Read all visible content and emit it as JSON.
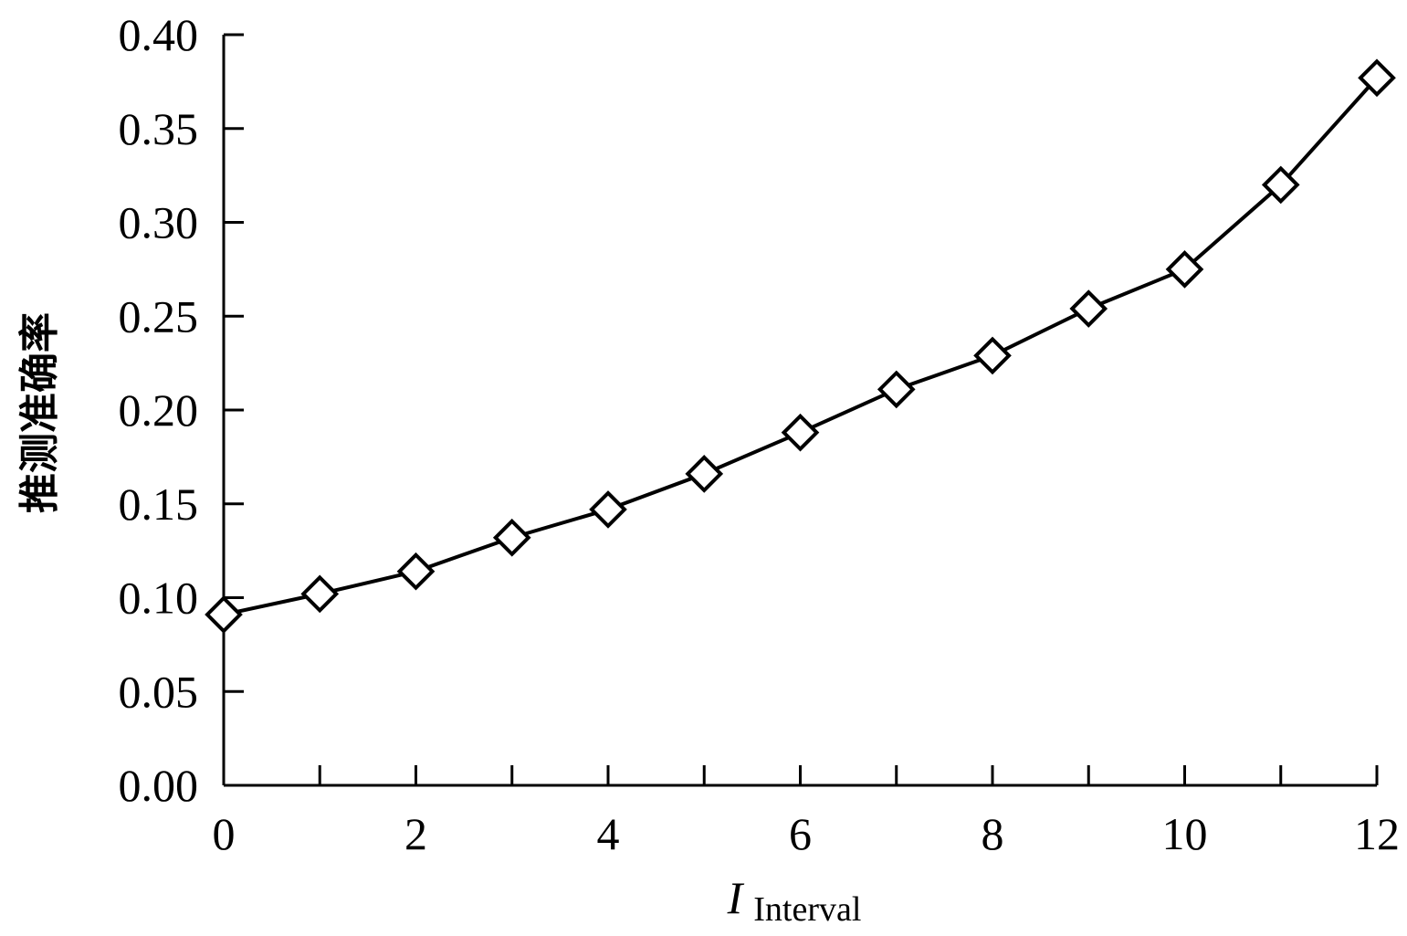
{
  "chart_data": {
    "type": "line",
    "title": "",
    "xlabel": {
      "main": "I",
      "subscript": "Interval"
    },
    "ylabel": "推测准确率",
    "xlim": [
      0,
      12
    ],
    "ylim": [
      0.0,
      0.4
    ],
    "x_ticks": [
      "0",
      "2",
      "4",
      "6",
      "8",
      "10",
      "12"
    ],
    "y_ticks": [
      "0.00",
      "0.05",
      "0.10",
      "0.15",
      "0.20",
      "0.25",
      "0.30",
      "0.35",
      "0.40"
    ],
    "x_tick_values": [
      0,
      1,
      2,
      3,
      4,
      5,
      6,
      7,
      8,
      9,
      10,
      11,
      12
    ],
    "y_tick_values": [
      0,
      0.05,
      0.1,
      0.15,
      0.2,
      0.25,
      0.3,
      0.35,
      0.4
    ],
    "grid": false,
    "series": [
      {
        "marker": "diamond-open",
        "color": "#000000",
        "x": [
          0,
          1,
          2,
          3,
          4,
          5,
          6,
          7,
          8,
          9,
          10,
          11,
          12
        ],
        "y": [
          0.091,
          0.102,
          0.114,
          0.132,
          0.147,
          0.166,
          0.188,
          0.211,
          0.229,
          0.254,
          0.275,
          0.32,
          0.377
        ]
      }
    ]
  }
}
